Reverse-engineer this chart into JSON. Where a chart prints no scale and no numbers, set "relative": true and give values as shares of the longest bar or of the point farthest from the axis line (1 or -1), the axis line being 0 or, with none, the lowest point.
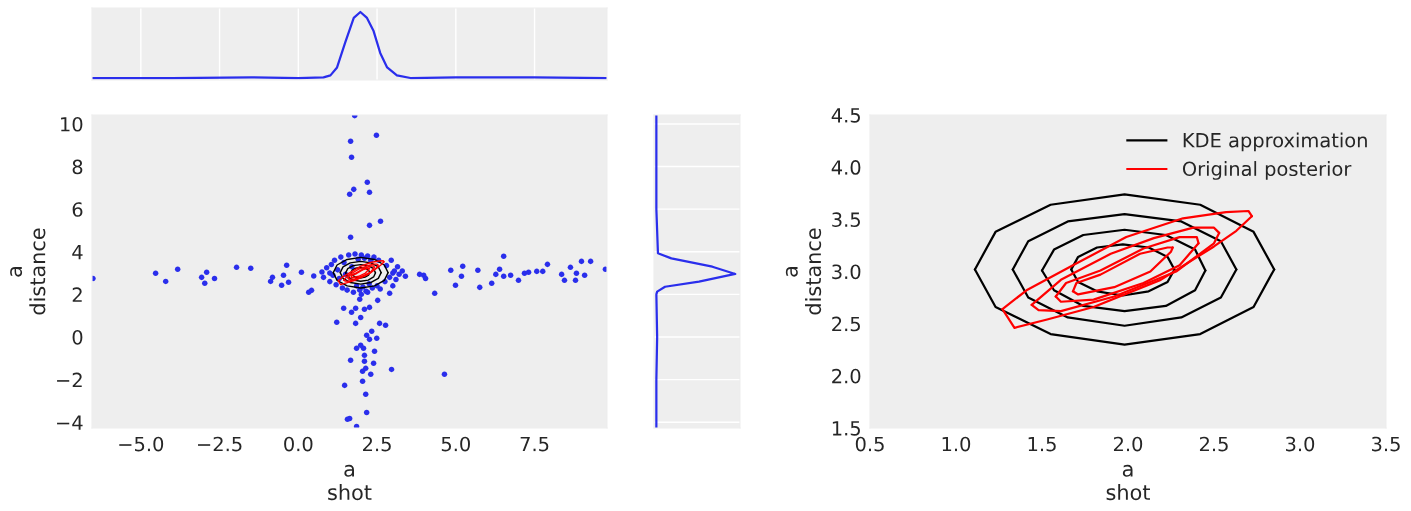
{
  "chart_data": [
    {
      "type": "line",
      "relative": true,
      "xlim": [
        -6.55,
        9.8
      ],
      "xticks": [
        -5,
        -2.5,
        0,
        2.5,
        5,
        7.5
      ],
      "tick_labels": false,
      "grid": "x",
      "series": [
        {
          "color": "#2a2eec",
          "x": [
            -6.55,
            -4,
            -1.5,
            0.0,
            0.8,
            1.02,
            1.23,
            1.49,
            1.76,
            1.97,
            2.18,
            2.39,
            2.6,
            2.82,
            3.13,
            3.56,
            5,
            7.5,
            9.8
          ],
          "values": [
            0,
            0,
            0.01,
            0,
            0.01,
            0.04,
            0.16,
            0.54,
            0.91,
            1,
            0.91,
            0.71,
            0.38,
            0.16,
            0.04,
            0,
            0.01,
            0.01,
            0
          ]
        }
      ]
    },
    {
      "type": "scatter",
      "xlabel": "a\nshot",
      "ylabel": "a\ndistance",
      "xlim": [
        -6.55,
        9.8
      ],
      "ylim": [
        -4.27,
        10.42
      ],
      "xticks": [
        {
          "value": -5,
          "label": "−5.0"
        },
        {
          "value": -2.5,
          "label": "−2.5"
        },
        {
          "value": 0,
          "label": "0.0"
        },
        {
          "value": 2.5,
          "label": "2.5"
        },
        {
          "value": 5,
          "label": "5.0"
        },
        {
          "value": 7.5,
          "label": "7.5"
        }
      ],
      "yticks": [
        {
          "value": -4,
          "label": "−4"
        },
        {
          "value": -2,
          "label": "−2"
        },
        0,
        2,
        4,
        6,
        8,
        10
      ],
      "grid": false,
      "series": [
        {
          "type": "scatter",
          "marker": "circle",
          "color": "#2a2eec",
          "x": [
            1.79,
            2.48,
            1.66,
            1.69,
            2.19,
            1.76,
            1.63,
            2.26,
            2.26,
            2.61,
            1.66,
            -6.52,
            -4.53,
            -4.21,
            -3.83,
            -3.07,
            -2.91,
            -2.97,
            -2.66,
            -1.96,
            -1.51,
            -0.88,
            -0.82,
            -0.53,
            -0.47,
            -0.31,
            -0.37,
            0.1,
            0.33,
            0.42,
            0.49,
            3.85,
            3.98,
            4.04,
            4.33,
            4.84,
            4.99,
            5.18,
            5.22,
            5.7,
            5.76,
            6.14,
            6.27,
            6.39,
            6.52,
            6.52,
            6.74,
            6.99,
            7.18,
            7.31,
            7.57,
            7.76,
            7.91,
            8.36,
            8.45,
            8.64,
            8.83,
            8.8,
            8.99,
            9.09,
            9.28,
            9.75,
            1.95,
            2.52,
            2.9,
            1.44,
            1.82,
            2.1,
            2.26,
            1.69,
            1.98,
            1.22,
            1.82,
            2.58,
            2.77,
            2.33,
            2.17,
            2.26,
            2.49,
            1.85,
            1.98,
            2.07,
            2.42,
            1.66,
            2.1,
            2.1,
            2.39,
            2.14,
            2.04,
            2.3,
            2.96,
            4.64,
            1.47,
            2.04,
            2.14,
            2.17,
            1.56,
            1.63,
            1.85,
            0.75,
            0.8,
            0.9,
            1.0,
            1.05,
            1.1,
            1.15,
            1.2,
            1.25,
            1.3,
            1.35,
            1.4,
            1.45,
            1.5,
            1.55,
            1.6,
            1.7,
            1.75,
            1.8,
            1.85,
            1.9,
            1.95,
            2.0,
            2.05,
            2.1,
            2.15,
            2.2,
            2.25,
            2.3,
            2.35,
            2.4,
            2.5,
            2.55,
            2.6,
            2.75,
            2.8,
            2.9,
            2.95,
            3.0,
            3.05,
            3.1,
            3.15,
            3.2,
            3.3,
            3.4,
            1.0,
            3.0,
            2.0,
            2.2
          ],
          "values": [
            10.39,
            9.47,
            9.19,
            8.44,
            7.26,
            6.93,
            6.7,
            6.79,
            5.24,
            5.43,
            4.68,
            2.75,
            2.99,
            2.61,
            3.18,
            2.8,
            3.04,
            2.52,
            2.75,
            3.27,
            3.23,
            2.61,
            2.8,
            2.43,
            2.9,
            2.57,
            3.37,
            3.04,
            2.1,
            2.19,
            2.86,
            2.94,
            2.9,
            2.75,
            2.05,
            3.13,
            2.43,
            2.85,
            3.32,
            3.13,
            2.33,
            2.52,
            2.94,
            3.18,
            3.79,
            2.85,
            2.9,
            2.66,
            2.99,
            3.04,
            3.08,
            3.08,
            3.41,
            2.94,
            2.66,
            3.27,
            2.99,
            2.66,
            3.55,
            2.9,
            3.55,
            3.18,
            1.77,
            1.72,
            2.05,
            1.35,
            1.35,
            1.3,
            1.39,
            1.16,
            0.92,
            0.69,
            0.64,
            0.64,
            0.55,
            0.27,
            0.08,
            -0.11,
            -0.06,
            -0.53,
            -0.39,
            -0.53,
            -0.67,
            -1.09,
            -0.86,
            -1.14,
            -1.23,
            -1.47,
            -1.61,
            -1.75,
            -1.52,
            -1.75,
            -2.27,
            -2.08,
            -2.69,
            -3.54,
            -3.86,
            -3.82,
            -4.2,
            3.05,
            2.8,
            3.25,
            2.6,
            3.4,
            2.9,
            3.6,
            2.45,
            3.15,
            2.75,
            3.75,
            2.3,
            3.5,
            2.95,
            2.2,
            3.85,
            3.3,
            2.1,
            3.9,
            2.4,
            3.65,
            2.2,
            3.85,
            2.35,
            3.7,
            2.15,
            3.8,
            2.5,
            3.6,
            2.3,
            3.75,
            2.4,
            3.6,
            2.25,
            2.6,
            3.35,
            2.8,
            3.6,
            2.4,
            3.1,
            2.7,
            3.3,
            2.95,
            3.1,
            2.85,
            3.0,
            3.0,
            2.0,
            2.1
          ]
        },
        {
          "type": "line",
          "color": "#000000",
          "x": [
            1.11,
            1.23,
            1.55,
            1.98,
            2.42,
            2.73,
            2.85
          ],
          "values": [
            3.02,
            3.38,
            3.64,
            3.74,
            3.64,
            3.38,
            3.02
          ]
        },
        {
          "type": "line",
          "color": "#000000",
          "x": [
            1.11,
            1.23,
            1.55,
            1.98,
            2.42,
            2.73,
            2.85
          ],
          "values": [
            3.02,
            2.66,
            2.4,
            2.3,
            2.4,
            2.66,
            3.02
          ]
        },
        {
          "type": "line",
          "color": "#000000",
          "x": [
            1.33,
            1.42,
            1.65,
            1.98,
            2.31,
            2.54,
            2.63
          ],
          "values": [
            3.02,
            3.29,
            3.48,
            3.55,
            3.48,
            3.29,
            3.02
          ]
        },
        {
          "type": "line",
          "color": "#000000",
          "x": [
            1.33,
            1.42,
            1.65,
            1.98,
            2.31,
            2.54,
            2.63
          ],
          "values": [
            3.02,
            2.75,
            2.56,
            2.48,
            2.56,
            2.75,
            3.02
          ]
        },
        {
          "type": "line",
          "color": "#000000",
          "x": [
            1.5,
            1.57,
            1.74,
            1.98,
            2.22,
            2.39,
            2.45
          ],
          "values": [
            3.01,
            3.21,
            3.35,
            3.4,
            3.35,
            3.21,
            3.01
          ]
        },
        {
          "type": "line",
          "color": "#000000",
          "x": [
            1.5,
            1.57,
            1.74,
            1.98,
            2.22,
            2.39,
            2.45
          ],
          "values": [
            3.01,
            2.82,
            2.67,
            2.62,
            2.67,
            2.82,
            3.01
          ]
        },
        {
          "type": "line",
          "color": "#000000",
          "x": [
            1.67,
            1.71,
            1.82,
            1.97,
            2.12,
            2.23,
            2.27
          ],
          "values": [
            3.02,
            3.14,
            3.23,
            3.26,
            3.23,
            3.14,
            3.02
          ]
        },
        {
          "type": "line",
          "color": "#000000",
          "x": [
            1.67,
            1.71,
            1.82,
            1.97,
            2.12,
            2.23,
            2.27
          ],
          "values": [
            3.02,
            2.9,
            2.81,
            2.77,
            2.81,
            2.9,
            3.02
          ]
        },
        {
          "type": "line",
          "color": "#ff0000",
          "x": [
            1.27,
            1.34,
            1.53,
            1.8,
            2.19,
            2.5,
            2.63,
            2.72
          ],
          "values": [
            2.64,
            2.46,
            2.54,
            2.66,
            2.92,
            3.24,
            3.39,
            3.53
          ]
        },
        {
          "type": "line",
          "color": "#ff0000",
          "x": [
            1.27,
            1.41,
            1.68,
            1.99,
            2.32,
            2.57,
            2.7,
            2.72
          ],
          "values": [
            2.64,
            2.82,
            3.06,
            3.33,
            3.51,
            3.57,
            3.58,
            3.53
          ]
        },
        {
          "type": "line",
          "color": "#ff0000",
          "x": [
            1.44,
            1.48,
            1.61,
            1.92,
            2.28,
            2.5,
            2.53
          ],
          "values": [
            2.68,
            2.63,
            2.62,
            2.76,
            3.0,
            3.27,
            3.37
          ]
        },
        {
          "type": "line",
          "color": "#ff0000",
          "x": [
            1.44,
            1.61,
            1.9,
            2.15,
            2.38,
            2.5,
            2.53
          ],
          "values": [
            2.68,
            2.92,
            3.17,
            3.32,
            3.42,
            3.42,
            3.37
          ]
        },
        {
          "type": "line",
          "color": "#ff0000",
          "x": [
            1.58,
            1.61,
            1.8,
            2.09,
            2.3,
            2.41
          ],
          "values": [
            2.76,
            2.71,
            2.73,
            2.89,
            3.06,
            3.27
          ]
        },
        {
          "type": "line",
          "color": "#ff0000",
          "x": [
            1.58,
            1.64,
            1.84,
            2.09,
            2.3,
            2.4,
            2.41
          ],
          "values": [
            2.76,
            2.89,
            3.01,
            3.22,
            3.33,
            3.33,
            3.27
          ]
        },
        {
          "type": "line",
          "color": "#ff0000",
          "x": [
            1.68,
            1.71,
            1.92,
            2.13,
            2.25,
            2.26
          ],
          "values": [
            2.81,
            2.78,
            2.85,
            3.0,
            3.19,
            3.23
          ]
        },
        {
          "type": "line",
          "color": "#ff0000",
          "x": [
            1.68,
            1.7,
            1.84,
            2.07,
            2.23,
            2.26
          ],
          "values": [
            2.81,
            2.89,
            2.97,
            3.17,
            3.23,
            3.23
          ]
        }
      ]
    },
    {
      "type": "line",
      "orientation": "horizontal",
      "relative": true,
      "ylim": [
        -4.27,
        10.42
      ],
      "yticks": [
        -4,
        -2,
        0,
        2,
        4,
        6,
        8,
        10
      ],
      "tick_labels": false,
      "grid": "y",
      "series": [
        {
          "color": "#2a2eec",
          "x": [
            -4.27,
            -2,
            0,
            2,
            2.13,
            2.36,
            2.6,
            2.96,
            3.3,
            3.69,
            3.93,
            6,
            8,
            10.42
          ],
          "values": [
            0,
            0,
            0.01,
            0,
            0.01,
            0.11,
            0.54,
            1,
            0.71,
            0.19,
            0.02,
            0,
            0,
            0
          ]
        }
      ]
    },
    {
      "type": "line",
      "xlabel": "a\nshot",
      "ylabel": "a\ndistance",
      "xlim": [
        0.5,
        3.5
      ],
      "ylim": [
        1.5,
        4.5
      ],
      "xticks": [
        0.5,
        {
          "value": 1,
          "label": "1.0"
        },
        1.5,
        {
          "value": 2,
          "label": "2.0"
        },
        2.5,
        {
          "value": 3,
          "label": "3.0"
        },
        3.5
      ],
      "yticks": [
        1.5,
        {
          "value": 2,
          "label": "2.0"
        },
        2.5,
        {
          "value": 3,
          "label": "3.0"
        },
        3.5,
        {
          "value": 4,
          "label": "4.0"
        },
        4.5
      ],
      "grid": false,
      "legend": "top right",
      "series": [
        {
          "name": "KDE approximation",
          "color": "#000000",
          "x": [
            1.11,
            1.23,
            1.55,
            1.98,
            2.42,
            2.73,
            2.85
          ],
          "values": [
            3.02,
            3.38,
            3.64,
            3.74,
            3.64,
            3.38,
            3.02
          ]
        },
        {
          "color": "#000000",
          "x": [
            1.11,
            1.23,
            1.55,
            1.98,
            2.42,
            2.73,
            2.85
          ],
          "values": [
            3.02,
            2.66,
            2.4,
            2.3,
            2.4,
            2.66,
            3.02
          ]
        },
        {
          "color": "#000000",
          "x": [
            1.33,
            1.42,
            1.65,
            1.98,
            2.31,
            2.54,
            2.63
          ],
          "values": [
            3.02,
            3.29,
            3.48,
            3.55,
            3.48,
            3.29,
            3.02
          ]
        },
        {
          "color": "#000000",
          "x": [
            1.33,
            1.42,
            1.65,
            1.98,
            2.31,
            2.54,
            2.63
          ],
          "values": [
            3.02,
            2.75,
            2.56,
            2.48,
            2.56,
            2.75,
            3.02
          ]
        },
        {
          "color": "#000000",
          "x": [
            1.5,
            1.57,
            1.74,
            1.98,
            2.22,
            2.39,
            2.45
          ],
          "values": [
            3.01,
            3.21,
            3.35,
            3.4,
            3.35,
            3.21,
            3.01
          ]
        },
        {
          "color": "#000000",
          "x": [
            1.5,
            1.57,
            1.74,
            1.98,
            2.22,
            2.39,
            2.45
          ],
          "values": [
            3.01,
            2.82,
            2.67,
            2.62,
            2.67,
            2.82,
            3.01
          ]
        },
        {
          "color": "#000000",
          "x": [
            1.67,
            1.71,
            1.82,
            1.97,
            2.12,
            2.23,
            2.27
          ],
          "values": [
            3.02,
            3.14,
            3.23,
            3.26,
            3.23,
            3.14,
            3.02
          ]
        },
        {
          "color": "#000000",
          "x": [
            1.67,
            1.71,
            1.82,
            1.97,
            2.12,
            2.23,
            2.27
          ],
          "values": [
            3.02,
            2.9,
            2.81,
            2.77,
            2.81,
            2.9,
            3.02
          ]
        },
        {
          "name": "Original posterior",
          "color": "#ff0000",
          "x": [
            1.27,
            1.34,
            1.53,
            1.8,
            2.19,
            2.5,
            2.63,
            2.72
          ],
          "values": [
            2.64,
            2.46,
            2.54,
            2.66,
            2.92,
            3.24,
            3.39,
            3.53
          ]
        },
        {
          "color": "#ff0000",
          "x": [
            1.27,
            1.41,
            1.68,
            1.99,
            2.32,
            2.57,
            2.7,
            2.72
          ],
          "values": [
            2.64,
            2.82,
            3.06,
            3.33,
            3.51,
            3.57,
            3.58,
            3.53
          ]
        },
        {
          "color": "#ff0000",
          "x": [
            1.44,
            1.48,
            1.61,
            1.92,
            2.28,
            2.5,
            2.53
          ],
          "values": [
            2.68,
            2.63,
            2.62,
            2.76,
            3.0,
            3.27,
            3.37
          ]
        },
        {
          "color": "#ff0000",
          "x": [
            1.44,
            1.61,
            1.9,
            2.15,
            2.38,
            2.5,
            2.53
          ],
          "values": [
            2.68,
            2.92,
            3.17,
            3.32,
            3.42,
            3.42,
            3.37
          ]
        },
        {
          "color": "#ff0000",
          "x": [
            1.58,
            1.61,
            1.8,
            2.09,
            2.3,
            2.41
          ],
          "values": [
            2.76,
            2.71,
            2.73,
            2.89,
            3.06,
            3.27
          ]
        },
        {
          "color": "#ff0000",
          "x": [
            1.58,
            1.64,
            1.84,
            2.09,
            2.3,
            2.4,
            2.41
          ],
          "values": [
            2.76,
            2.89,
            3.01,
            3.22,
            3.33,
            3.33,
            3.27
          ]
        },
        {
          "color": "#ff0000",
          "x": [
            1.68,
            1.71,
            1.92,
            2.13,
            2.25,
            2.26
          ],
          "values": [
            2.81,
            2.78,
            2.85,
            3.0,
            3.19,
            3.23
          ]
        },
        {
          "color": "#ff0000",
          "x": [
            1.68,
            1.7,
            1.84,
            2.07,
            2.23,
            2.26
          ],
          "values": [
            2.81,
            2.89,
            2.97,
            3.17,
            3.23,
            3.23
          ]
        }
      ]
    }
  ]
}
